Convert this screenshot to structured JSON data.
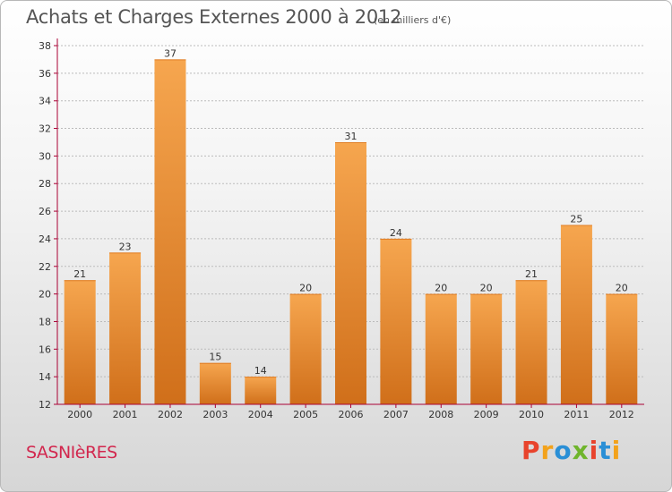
{
  "header": {
    "title": "Achats et Charges Externes 2000 à 2012",
    "subtitle": "(en milliers d'€)"
  },
  "footer": {
    "town": "SASNIèRES",
    "logo_text": "Proxiti",
    "logo_colors": [
      "#e8432c",
      "#f3a21b",
      "#2a8fd6",
      "#6fb52c",
      "#e8432c",
      "#2a8fd6",
      "#f3a21b"
    ]
  },
  "colors": {
    "bar_top": "#f6a64f",
    "bar_bottom": "#d06f1a",
    "axis": "#aa0033",
    "grid": "#bbbbbb"
  },
  "chart_data": {
    "type": "bar",
    "title": "Achats et Charges Externes 2000 à 2012",
    "subtitle": "(en milliers d'€)",
    "xlabel": "",
    "ylabel": "",
    "categories": [
      "2000",
      "2001",
      "2002",
      "2003",
      "2004",
      "2005",
      "2006",
      "2007",
      "2008",
      "2009",
      "2010",
      "2011",
      "2012"
    ],
    "values": [
      21,
      23,
      37,
      15,
      14,
      20,
      31,
      24,
      20,
      20,
      21,
      25,
      20
    ],
    "ylim": [
      12,
      38
    ],
    "yticks": [
      12,
      14,
      16,
      18,
      20,
      22,
      24,
      26,
      28,
      30,
      32,
      34,
      36,
      38
    ],
    "grid": true,
    "legend": "none"
  }
}
